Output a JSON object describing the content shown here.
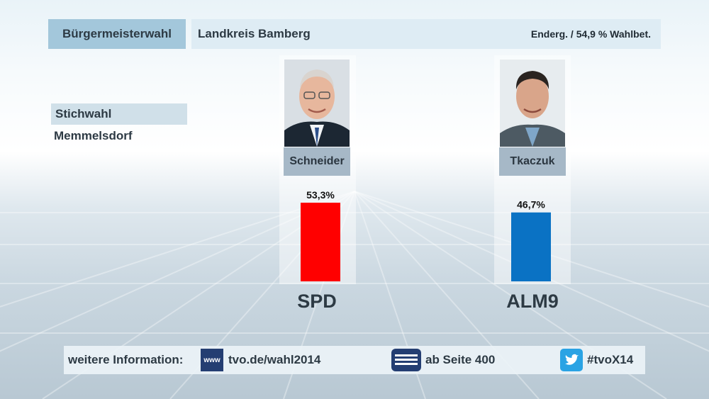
{
  "header": {
    "title": "Bürgermeisterwahl",
    "region": "Landkreis Bamberg",
    "status": "Enderg. / 54,9 % Wahlbet."
  },
  "subheader": {
    "round": "Stichwahl",
    "place": "Memmelsdorf"
  },
  "chart_data": {
    "type": "bar",
    "categories": [
      "Schneider",
      "Tkaczuk"
    ],
    "parties": [
      "SPD",
      "ALM9"
    ],
    "values": [
      53.3,
      46.7
    ],
    "value_labels": [
      "53,3%",
      "46,7%"
    ],
    "colors": [
      "#ff0000",
      "#0a72c4"
    ],
    "title": "",
    "xlabel": "",
    "ylabel": "",
    "ylim": [
      0,
      60
    ]
  },
  "footer": {
    "label": "weitere Information:",
    "www_icon_text": "www",
    "url": "tvo.de/wahl2014",
    "teletext": "ab Seite 400",
    "hashtag": "#tvoX14",
    "icons": [
      "www-icon",
      "teletext-icon",
      "twitter-icon"
    ]
  }
}
